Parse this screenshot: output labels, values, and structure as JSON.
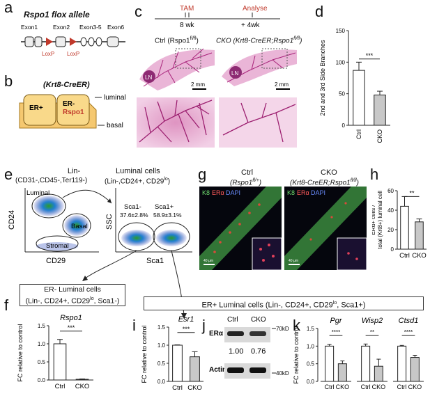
{
  "panels": {
    "a": {
      "letter": "a",
      "title": "Rspo1 flox allele",
      "exons": [
        "Exon1",
        "Exon2",
        "Exon3-5",
        "Exon6"
      ],
      "loxp": "LoxP"
    },
    "b": {
      "letter": "b",
      "title": "(Krt8-CreER)",
      "er_pos": "ER+",
      "er_neg": "ER-",
      "gene": "Rspo1",
      "luminal": "luminal",
      "basal": "basal"
    },
    "c": {
      "letter": "c",
      "tam": "TAM",
      "analyse": "Analyse",
      "t1": "8 wk",
      "t2": "+ 4wk",
      "ctrl_title": "Ctrl (Rspo1",
      "ctrl_sup": "fl/fl",
      "cko_title": "CKO (Krt8-CreER;Rspo1",
      "cko_sup": "fl/fl",
      "ln": "LN",
      "scale": "2 mm"
    },
    "d": {
      "letter": "d",
      "ylabel": "2nd and 3rd Side Branches",
      "sig": "***"
    },
    "e": {
      "letter": "e",
      "lin_title": "Lin-",
      "lin_sub": "(CD31-,CD45-,Ter119-)",
      "lum_title": "Luminal cells",
      "lum_sub": "(Lin-,CD24+, CD29",
      "lum_sub2": "lo",
      "lum_sub3": ")",
      "y1": "CD24",
      "x1": "CD29",
      "g_luminal": "Luminal",
      "g_basal": "Basal",
      "g_stromal": "Stromal",
      "y2": "SSC",
      "x2": "Sca1",
      "sca_neg": "Sca1-",
      "sca_neg_v": "37.6±2.8%",
      "sca_pos": "Sca1+",
      "sca_pos_v": "58.9±3.1%",
      "erneg_box1": "ER- Luminal cells",
      "erneg_box2": "(Lin-, CD24+, CD29",
      "erneg_box3": "lo",
      "erneg_box4": ", Sca1-)",
      "erpos_box": "ER+ Luminal cells (Lin-, CD24+, CD29",
      "erpos_sup": "lo",
      "erpos_end": ", Sca1+)"
    },
    "g": {
      "letter": "g",
      "ctrl": "Ctrl",
      "ctrl_geno": "(Rspo1",
      "ctrl_sup": "fl/+",
      "cko": "CKO",
      "cko_geno": "(Krt8-CreER;Rspo1",
      "cko_sup": "fl/fl",
      "k8": "K8",
      "era": "ERα",
      "dapi": "DAPI",
      "scale": "40 μm"
    },
    "h": {
      "letter": "h",
      "ylabel1": "ERα+ cells /",
      "ylabel2": "total (Krt8+) luminal cell",
      "sig": "**"
    },
    "f": {
      "letter": "f",
      "gene": "Rspo1",
      "ylabel": "FC relative to control",
      "sig": "***"
    },
    "i": {
      "letter": "i",
      "gene": "Esr1",
      "ylabel": "FC relative to control",
      "sig": "***"
    },
    "j": {
      "letter": "j",
      "ctrl": "Ctrl",
      "cko": "CKO",
      "era": "ERα",
      "actin": "Actin",
      "kd70": "70kD",
      "kd40": "40kD",
      "q1": "1.00",
      "q2": "0.76"
    },
    "k": {
      "letter": "k",
      "genes": [
        "Pgr",
        "Wisp2",
        "Ctsd1"
      ],
      "ylabel": "FC relative to control",
      "sigs": [
        "****",
        "**",
        "****"
      ]
    }
  },
  "chart_data": [
    {
      "panel": "d",
      "type": "bar",
      "categories": [
        "Ctrl",
        "CKO"
      ],
      "values": [
        87,
        48
      ],
      "errors": [
        13,
        6
      ],
      "ylim": [
        0,
        150
      ],
      "yticks": [
        0,
        50,
        100,
        150
      ],
      "ylabel": "2nd and 3rd Side Branches"
    },
    {
      "panel": "h",
      "type": "bar",
      "categories": [
        "Ctrl",
        "CKO"
      ],
      "values": [
        44,
        28
      ],
      "errors": [
        10,
        3
      ],
      "ylim": [
        0,
        60
      ],
      "yticks": [
        0,
        20,
        40,
        60
      ],
      "ylabel": "ERα+ cells / total (Krt8+) luminal cell"
    },
    {
      "panel": "f",
      "type": "bar",
      "categories": [
        "Ctrl",
        "CKO"
      ],
      "values": [
        1.0,
        0.02
      ],
      "errors": [
        0.12,
        0.01
      ],
      "ylim": [
        0,
        1.5
      ],
      "yticks": [
        0.0,
        0.5,
        1.0,
        1.5
      ],
      "ylabel": "FC relative to control"
    },
    {
      "panel": "i",
      "type": "bar",
      "categories": [
        "Ctrl",
        "CKO"
      ],
      "values": [
        1.0,
        0.68
      ],
      "errors": [
        0.01,
        0.14
      ],
      "ylim": [
        0,
        1.5
      ],
      "yticks": [
        0.0,
        0.5,
        1.0,
        1.5
      ],
      "ylabel": "FC relative to control"
    },
    {
      "panel": "k",
      "type": "bar",
      "groups": [
        "Pgr",
        "Wisp2",
        "Ctsd1"
      ],
      "categories": [
        "Ctrl",
        "CKO"
      ],
      "series": [
        {
          "group": "Pgr",
          "values": [
            1.0,
            0.5
          ],
          "errors": [
            0.05,
            0.08
          ]
        },
        {
          "group": "Wisp2",
          "values": [
            1.0,
            0.43
          ],
          "errors": [
            0.06,
            0.2
          ]
        },
        {
          "group": "Ctsd1",
          "values": [
            1.0,
            0.68
          ],
          "errors": [
            0.02,
            0.06
          ]
        }
      ],
      "ylim": [
        0,
        1.5
      ],
      "yticks": [
        0.0,
        0.5,
        1.0,
        1.5
      ],
      "ylabel": "FC relative to control"
    }
  ]
}
